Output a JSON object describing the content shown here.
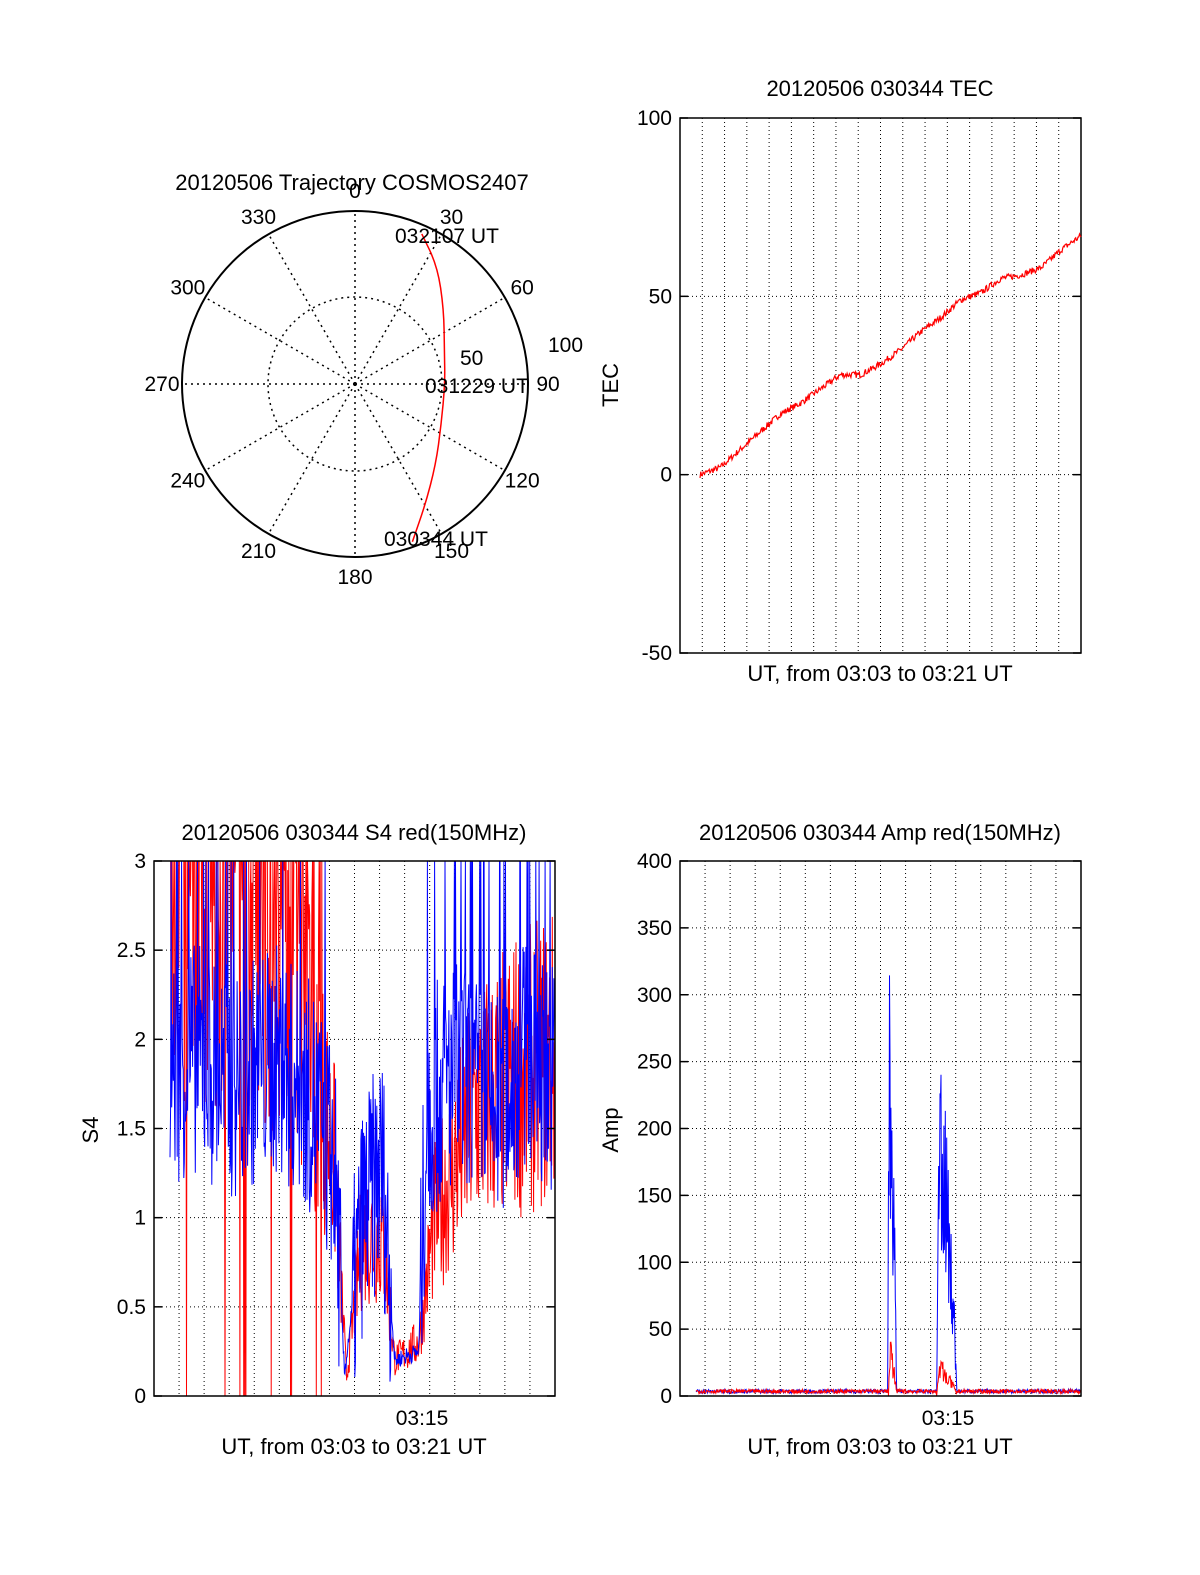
{
  "chart_data": [
    {
      "type": "polar",
      "title": "20120506 Trajectory COSMOS2407",
      "azimuth_labels": [
        "0",
        "30",
        "60",
        "90",
        "120",
        "150",
        "180",
        "210",
        "240",
        "270",
        "300",
        "330"
      ],
      "radial_ticks": [
        "50",
        "100"
      ],
      "grid": true,
      "trajectory": {
        "color": "#ff0000",
        "points": [
          {
            "az": 160,
            "r": 0.97
          },
          {
            "az": 150,
            "r": 0.81
          },
          {
            "az": 135,
            "r": 0.66
          },
          {
            "az": 115,
            "r": 0.55
          },
          {
            "az": 90,
            "r": 0.52
          },
          {
            "az": 70,
            "r": 0.55
          },
          {
            "az": 50,
            "r": 0.67
          },
          {
            "az": 35,
            "r": 0.83
          },
          {
            "az": 24,
            "r": 0.95
          }
        ]
      },
      "annotations": [
        {
          "text": "032107 UT",
          "az": 30,
          "r": 0.95
        },
        {
          "text": "031229 UT",
          "az": 90,
          "r": 0.52
        },
        {
          "text": "030344 UT",
          "az": 160,
          "r": 0.97
        }
      ]
    },
    {
      "type": "line",
      "title": "20120506 030344 TEC",
      "ylabel": "TEC",
      "xlabel": "UT, from 03:03 to 03:21 UT",
      "ylim": [
        -50,
        100
      ],
      "yticks": [
        "-50",
        "0",
        "50",
        "100"
      ],
      "grid": true,
      "series": [
        {
          "color": "#ff0000",
          "points": [
            [
              0.05,
              0
            ],
            [
              0.1,
              2
            ],
            [
              0.15,
              7
            ],
            [
              0.2,
              12
            ],
            [
              0.25,
              17
            ],
            [
              0.3,
              20
            ],
            [
              0.35,
              24
            ],
            [
              0.4,
              28
            ],
            [
              0.45,
              28
            ],
            [
              0.5,
              31
            ],
            [
              0.55,
              35
            ],
            [
              0.6,
              40
            ],
            [
              0.65,
              44
            ],
            [
              0.7,
              49
            ],
            [
              0.75,
              51
            ],
            [
              0.8,
              55
            ],
            [
              0.85,
              56
            ],
            [
              0.9,
              58
            ],
            [
              0.95,
              63
            ],
            [
              1.0,
              67
            ]
          ]
        }
      ]
    },
    {
      "type": "line",
      "title": "20120506 030344 S4 red(150MHz)",
      "ylabel": "S4",
      "xlabel": "UT, from 03:03 to 03:21 UT",
      "xtick_labels": [
        "03:15"
      ],
      "ylim": [
        0,
        3
      ],
      "yticks": [
        "0",
        "0.5",
        "1",
        "1.5",
        "2",
        "2.5",
        "3"
      ],
      "grid": true,
      "series": [
        {
          "color": "#0000ff",
          "profile": [
            [
              0.0,
              1.8
            ],
            [
              0.1,
              1.9
            ],
            [
              0.2,
              1.75
            ],
            [
              0.3,
              1.9
            ],
            [
              0.4,
              1.65
            ],
            [
              0.45,
              1.3
            ],
            [
              0.475,
              0.12
            ],
            [
              0.52,
              1.0
            ],
            [
              0.57,
              1.3
            ],
            [
              0.6,
              0.2
            ],
            [
              0.66,
              0.25
            ],
            [
              0.68,
              1.6
            ],
            [
              0.75,
              1.8
            ],
            [
              0.85,
              1.6
            ],
            [
              0.92,
              1.9
            ],
            [
              1.0,
              1.8
            ]
          ],
          "amplitude": 0.6
        }
      ],
      "red_series": [
        {
          "color": "#ff0000",
          "profile": [
            [
              0.0,
              2.9
            ],
            [
              0.2,
              2.9
            ],
            [
              0.35,
              2.5
            ],
            [
              0.45,
              1.3
            ],
            [
              0.48,
              0.1
            ],
            [
              0.52,
              0.9
            ],
            [
              0.57,
              0.9
            ],
            [
              0.6,
              0.2
            ],
            [
              0.66,
              0.3
            ],
            [
              0.7,
              1.0
            ],
            [
              0.8,
              1.6
            ],
            [
              0.9,
              1.8
            ],
            [
              1.0,
              1.9
            ]
          ]
        }
      ]
    },
    {
      "type": "line",
      "title": "20120506 030344 Amp red(150MHz)",
      "ylabel": "Amp",
      "xlabel": "UT, from 03:03 to 03:21 UT",
      "xtick_labels": [
        "03:15"
      ],
      "ylim": [
        0,
        400
      ],
      "yticks": [
        "0",
        "50",
        "100",
        "150",
        "200",
        "250",
        "300",
        "350",
        "400"
      ],
      "grid": true,
      "series": [
        {
          "color": "#0000ff",
          "peaks": [
            [
              0.518,
              0.54,
              350
            ],
            [
              0.64,
              0.69,
              285
            ]
          ]
        },
        {
          "color": "#ff0000",
          "peaks": [
            [
              0.52,
              0.54,
              50
            ],
            [
              0.64,
              0.69,
              30
            ]
          ]
        }
      ]
    }
  ]
}
